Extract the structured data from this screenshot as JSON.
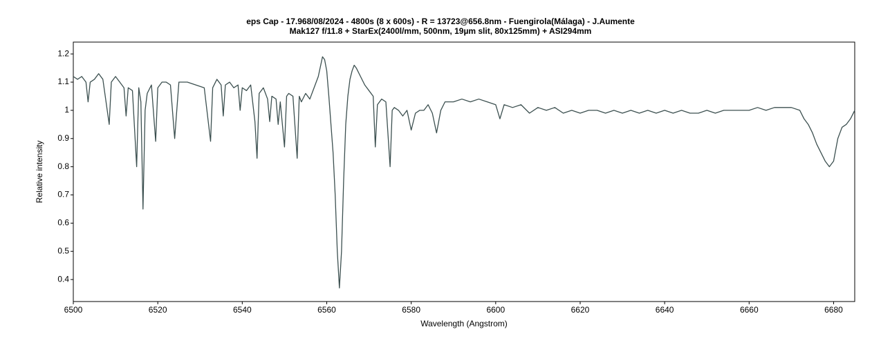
{
  "chart_data": {
    "type": "line",
    "title": "eps Cap - 17.968/08/2024 - 4800s (8 x 600s) - R = 13723@656.8nm - Fuengirola(Málaga) - J.Aumente",
    "subtitle": "Mak127 f/11.8 + StarEx(2400l/mm, 500nm, 19µm slit, 80x125mm) + ASI294mm",
    "x_label": "Wavelength (Angstrom)",
    "y_label": "Relative intensity",
    "color": "#3b4f4f",
    "xlim": [
      6500,
      6685
    ],
    "ylim": [
      0.322,
      1.242
    ],
    "xticks": [
      6500,
      6520,
      6540,
      6560,
      6580,
      6600,
      6620,
      6640,
      6660,
      6680
    ],
    "yticks": [
      0.4,
      0.5,
      0.6,
      0.7,
      0.8,
      0.9,
      1,
      1.1,
      1.2
    ],
    "x": [
      6500,
      6501,
      6502,
      6503,
      6503.5,
      6504,
      6505,
      6506,
      6507,
      6508.5,
      6509,
      6510,
      6511,
      6512,
      6512.5,
      6513,
      6514,
      6515,
      6515.5,
      6516,
      6516.5,
      6517,
      6517.5,
      6518.5,
      6519.5,
      6520,
      6521,
      6522,
      6523,
      6524,
      6525,
      6527,
      6529,
      6531,
      6532.5,
      6533,
      6534,
      6535,
      6535.5,
      6536,
      6537,
      6538,
      6539,
      6539.5,
      6540,
      6541,
      6542,
      6543,
      6543.5,
      6544,
      6545,
      6546,
      6546.5,
      6547,
      6548,
      6548.5,
      6549,
      6550,
      6550.5,
      6551,
      6552,
      6553,
      6553.5,
      6554,
      6555,
      6556,
      6557,
      6558,
      6559,
      6559.5,
      6560,
      6560.5,
      6561,
      6561.5,
      6562,
      6562.5,
      6563,
      6563.5,
      6564,
      6564.5,
      6565,
      6565.5,
      6566,
      6566.5,
      6567,
      6568,
      6569,
      6570,
      6571,
      6571.5,
      6572,
      6573,
      6574,
      6575,
      6575.5,
      6576,
      6577,
      6578,
      6579,
      6580,
      6581,
      6582,
      6583,
      6584,
      6585,
      6586,
      6587,
      6588,
      6590,
      6592,
      6594,
      6596,
      6598,
      6600,
      6601,
      6602,
      6604,
      6606,
      6608,
      6610,
      6612,
      6614,
      6616,
      6618,
      6620,
      6622,
      6624,
      6626,
      6628,
      6630,
      6632,
      6634,
      6636,
      6638,
      6640,
      6642,
      6644,
      6646,
      6648,
      6650,
      6652,
      6654,
      6656,
      6658,
      6660,
      6662,
      6664,
      6666,
      6668,
      6670,
      6672,
      6673,
      6674,
      6675,
      6676,
      6677,
      6678,
      6679,
      6680,
      6681,
      6682,
      6683,
      6684,
      6685
    ],
    "values": [
      1.12,
      1.11,
      1.12,
      1.1,
      1.03,
      1.1,
      1.11,
      1.13,
      1.11,
      0.95,
      1.1,
      1.12,
      1.1,
      1.08,
      0.98,
      1.08,
      1.07,
      0.8,
      1.08,
      1.03,
      0.65,
      1.0,
      1.06,
      1.09,
      0.89,
      1.08,
      1.1,
      1.1,
      1.09,
      0.9,
      1.1,
      1.1,
      1.09,
      1.08,
      0.89,
      1.08,
      1.11,
      1.09,
      0.98,
      1.09,
      1.1,
      1.08,
      1.09,
      1.0,
      1.08,
      1.07,
      1.09,
      0.96,
      0.83,
      1.06,
      1.08,
      1.04,
      0.96,
      1.05,
      1.04,
      0.95,
      1.03,
      0.87,
      1.05,
      1.06,
      1.05,
      0.83,
      1.05,
      1.03,
      1.06,
      1.04,
      1.08,
      1.12,
      1.19,
      1.18,
      1.14,
      1.05,
      0.95,
      0.85,
      0.7,
      0.5,
      0.37,
      0.5,
      0.75,
      0.95,
      1.05,
      1.11,
      1.14,
      1.16,
      1.15,
      1.12,
      1.09,
      1.07,
      1.05,
      0.87,
      1.02,
      1.04,
      1.03,
      0.8,
      1.0,
      1.01,
      1.0,
      0.98,
      1.0,
      0.93,
      0.99,
      1.0,
      1.0,
      1.02,
      0.99,
      0.92,
      1.0,
      1.03,
      1.03,
      1.04,
      1.03,
      1.04,
      1.03,
      1.02,
      0.97,
      1.02,
      1.01,
      1.02,
      0.99,
      1.01,
      1.0,
      1.01,
      0.99,
      1.0,
      0.99,
      1.0,
      1.0,
      0.99,
      1.0,
      0.99,
      1.0,
      0.99,
      1.0,
      0.99,
      1.0,
      0.99,
      1.0,
      0.99,
      0.99,
      1.0,
      0.99,
      1.0,
      1.0,
      1.0,
      1.0,
      1.01,
      1.0,
      1.01,
      1.01,
      1.01,
      1.0,
      0.97,
      0.95,
      0.92,
      0.88,
      0.85,
      0.82,
      0.8,
      0.82,
      0.9,
      0.94,
      0.95,
      0.97,
      1.0
    ]
  }
}
